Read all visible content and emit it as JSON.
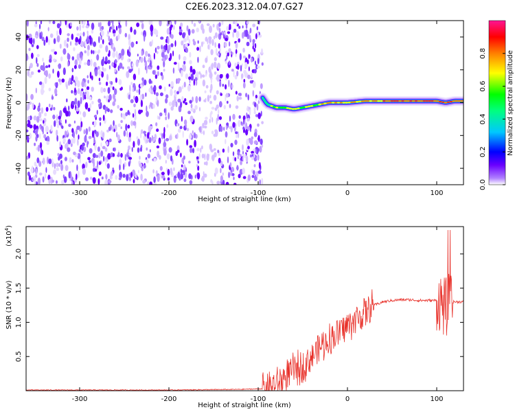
{
  "title": "C2E6.2023.312.04.07.G27",
  "colors": {
    "snr_line": "#e8312a",
    "axis": "#000000",
    "background": "#ffffff"
  },
  "chart_data": [
    {
      "type": "heatmap",
      "xlabel": "Height of straight line (km)",
      "ylabel": "Frequency (Hz)",
      "xlim": [
        -360,
        130
      ],
      "ylim": [
        -50,
        50
      ],
      "xticks": [
        -300,
        -200,
        -100,
        0,
        100
      ],
      "xtick_labels": [
        "-300",
        "-200",
        "-100",
        "0",
        "100"
      ],
      "yticks": [
        -40,
        -20,
        0,
        20,
        40
      ],
      "ytick_labels": [
        "-40",
        "-20",
        "0",
        "20",
        "40"
      ],
      "noise_region_x": [
        -360,
        -95
      ],
      "signal_ridge": {
        "x": [
          -95,
          -90,
          -80,
          -70,
          -60,
          -50,
          -40,
          -30,
          -20,
          -10,
          0,
          20,
          40,
          60,
          80,
          100,
          110,
          120,
          130
        ],
        "y": [
          3,
          -1,
          -3,
          -3,
          -4,
          -3,
          -2,
          -1,
          0,
          0,
          0,
          1,
          1,
          1,
          1,
          1,
          0,
          1,
          1
        ]
      },
      "colorbar": {
        "label": "Normalized spectral amplitude",
        "range": [
          0,
          1
        ],
        "ticks": [
          0.0,
          0.2,
          0.4,
          0.6,
          0.8
        ],
        "tick_labels": [
          "0.0",
          "0.2",
          "0.4",
          "0.6",
          "0.8"
        ],
        "colormap": [
          "#ffffff",
          "#6a00ff",
          "#0000ff",
          "#00c8ff",
          "#00ff80",
          "#00ff00",
          "#ffff00",
          "#ff8000",
          "#ff0000",
          "#ff1493"
        ]
      }
    },
    {
      "type": "line",
      "xlabel": "Height of straight line (km)",
      "ylabel": "SNR (10 * v/v)",
      "yscale_label": "(x10",
      "yscale_exp": "4",
      "yscale_close": ")",
      "xlim": [
        -360,
        130
      ],
      "ylim": [
        0,
        2.4
      ],
      "xticks": [
        -300,
        -200,
        -100,
        0,
        100
      ],
      "xtick_labels": [
        "-300",
        "-200",
        "-100",
        "0",
        "100"
      ],
      "yticks": [
        0.5,
        1.0,
        1.5,
        2.0
      ],
      "ytick_labels": [
        "0.5",
        "1.0",
        "1.5",
        "2.0"
      ],
      "series": [
        {
          "x": [
            -360,
            -300,
            -200,
            -120,
            -90,
            -80,
            -70,
            -60,
            -50,
            -40,
            -30,
            -20,
            -10,
            0,
            10,
            20,
            30,
            40,
            50,
            60,
            70,
            80,
            90,
            100,
            105,
            110,
            115,
            120,
            130
          ],
          "values": [
            0.01,
            0.01,
            0.01,
            0.02,
            0.03,
            0.08,
            0.2,
            0.3,
            0.35,
            0.5,
            0.65,
            0.75,
            0.85,
            0.95,
            1.05,
            1.15,
            1.25,
            1.3,
            1.32,
            1.33,
            1.33,
            1.32,
            1.32,
            1.32,
            1.3,
            1.2,
            1.3,
            1.3,
            1.3
          ]
        }
      ]
    }
  ]
}
